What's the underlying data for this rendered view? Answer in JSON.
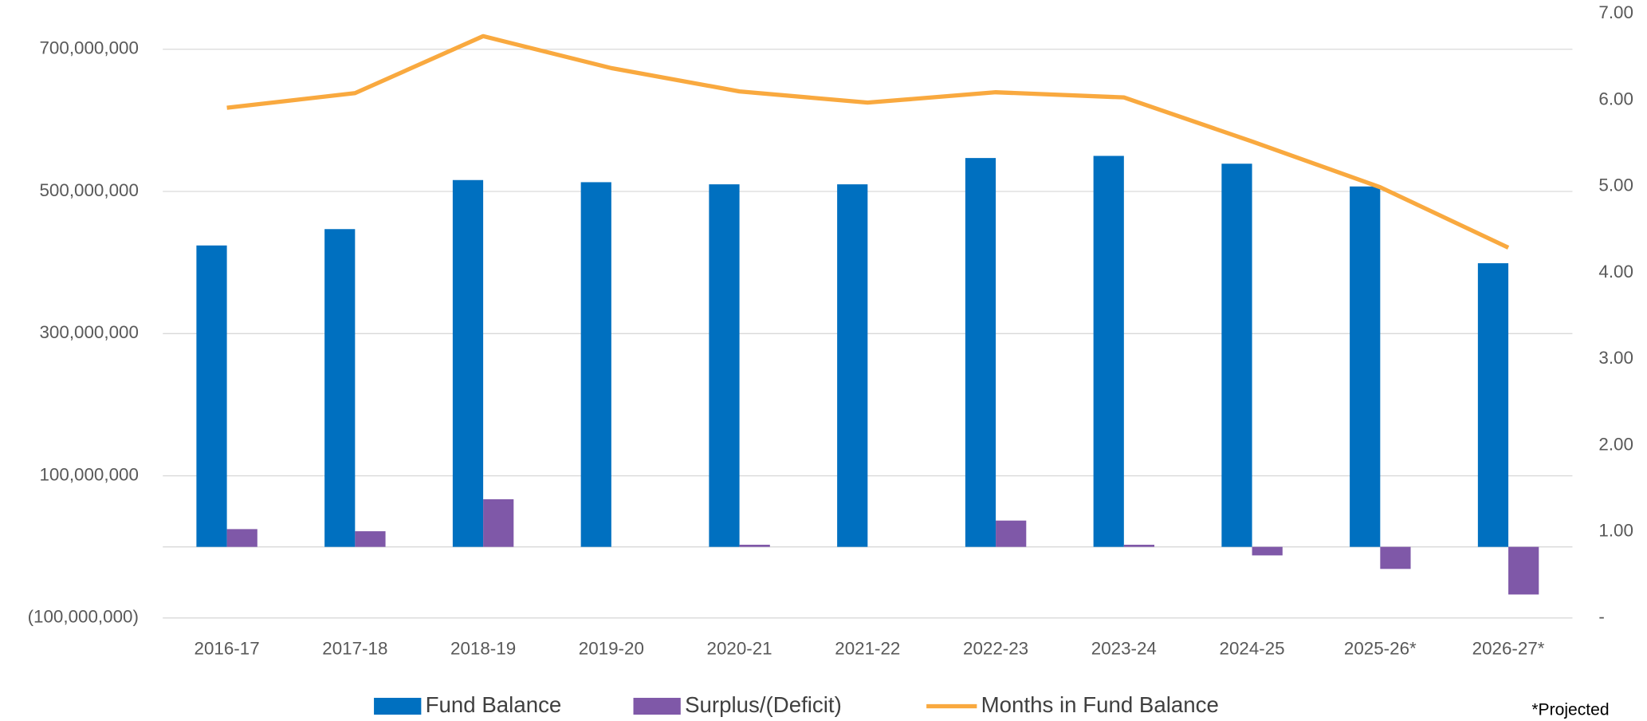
{
  "chart_data": {
    "type": "bar",
    "categories": [
      "2016-17",
      "2017-18",
      "2018-19",
      "2019-20",
      "2020-21",
      "2021-22",
      "2022-23",
      "2023-24",
      "2024-25",
      "2025-26*",
      "2026-27*"
    ],
    "series": [
      {
        "name": "Fund Balance",
        "color": "#0070c0",
        "values": [
          424000000,
          447000000,
          516000000,
          513000000,
          510000000,
          510000000,
          547000000,
          550000000,
          539000000,
          507000000,
          399000000
        ]
      },
      {
        "name": "Surplus/(Deficit)",
        "color": "#7f58a8",
        "values": [
          25000000,
          22000000,
          67000000,
          0,
          3000000,
          0,
          37000000,
          3000000,
          -12000000,
          -31000000,
          -67000000
        ]
      },
      {
        "name": "Months in Fund Balance",
        "color": "#f9a93f",
        "type": "line",
        "axis": "y2",
        "values": [
          5.91,
          6.08,
          6.74,
          6.37,
          6.1,
          5.97,
          6.09,
          6.03,
          5.52,
          4.99,
          4.29
        ]
      }
    ],
    "ylim": [
      -100000000,
      750000000
    ],
    "yticks": [
      {
        "value": -100000000,
        "label": "(100,000,000)"
      },
      {
        "value": 100000000,
        "label": "100,000,000"
      },
      {
        "value": 300000000,
        "label": "300,000,000"
      },
      {
        "value": 500000000,
        "label": "500,000,000"
      },
      {
        "value": 700000000,
        "label": "700,000,000"
      }
    ],
    "y2lim": [
      0,
      7
    ],
    "y2ticks": [
      {
        "value": 0,
        "label": "-"
      },
      {
        "value": 1,
        "label": "1.00"
      },
      {
        "value": 2,
        "label": "2.00"
      },
      {
        "value": 3,
        "label": "3.00"
      },
      {
        "value": 4,
        "label": "4.00"
      },
      {
        "value": 5,
        "label": "5.00"
      },
      {
        "value": 6,
        "label": "6.00"
      },
      {
        "value": 7,
        "label": "7.00"
      }
    ],
    "grid": true,
    "legend": "bottom",
    "annotation": "*Projected"
  }
}
